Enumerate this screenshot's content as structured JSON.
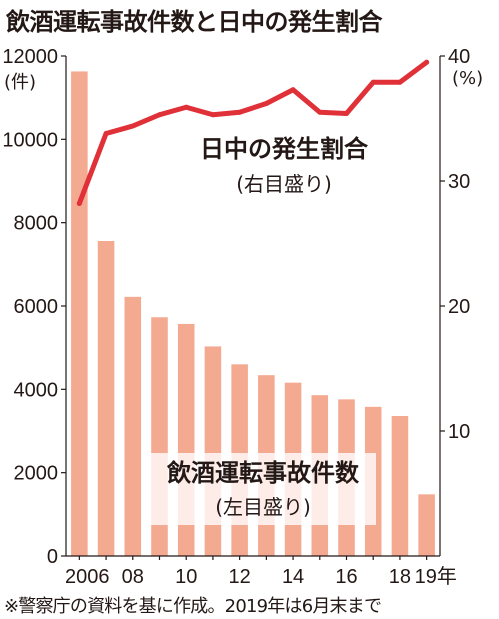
{
  "title": "飲酒運転事故件数と日中の発生割合",
  "units": {
    "left": "(件)",
    "right": "(%)"
  },
  "note": "※警察庁の資料を基に作成。2019年は6月末まで",
  "colors": {
    "bar": "#f4aa90",
    "line": "#e03038",
    "text": "#231815",
    "axis": "#231815"
  },
  "chart_data": {
    "type": "bar",
    "categories": [
      "2006",
      "2007",
      "2008",
      "2009",
      "2010",
      "2011",
      "2012",
      "2013",
      "2014",
      "2015",
      "2016",
      "2017",
      "2018",
      "2019"
    ],
    "x_tick_labels": [
      "2006",
      "",
      "08",
      "",
      "10",
      "",
      "12",
      "",
      "14",
      "",
      "16",
      "",
      "18",
      "19年"
    ],
    "series": [
      {
        "name": "飲酒運転事故件数",
        "sublabel": "(左目盛り)",
        "type": "bar",
        "axis": "left",
        "values": [
          11630,
          7560,
          6220,
          5730,
          5570,
          5030,
          4600,
          4340,
          4160,
          3860,
          3760,
          3580,
          3360,
          1480
        ]
      },
      {
        "name": "日中の発生割合",
        "sublabel": "(右目盛り)",
        "type": "line",
        "axis": "right",
        "values": [
          28.2,
          33.8,
          34.4,
          35.3,
          35.9,
          35.3,
          35.5,
          36.2,
          37.3,
          35.5,
          35.4,
          37.9,
          37.9,
          39.5
        ]
      }
    ],
    "y_left": {
      "ylim": [
        0,
        12000
      ],
      "ticks": [
        "0",
        "2000",
        "4000",
        "6000",
        "8000",
        "10000",
        "12000"
      ]
    },
    "y_right": {
      "ylim": [
        0,
        40
      ],
      "ticks": [
        "10",
        "20",
        "30",
        "40"
      ]
    }
  }
}
